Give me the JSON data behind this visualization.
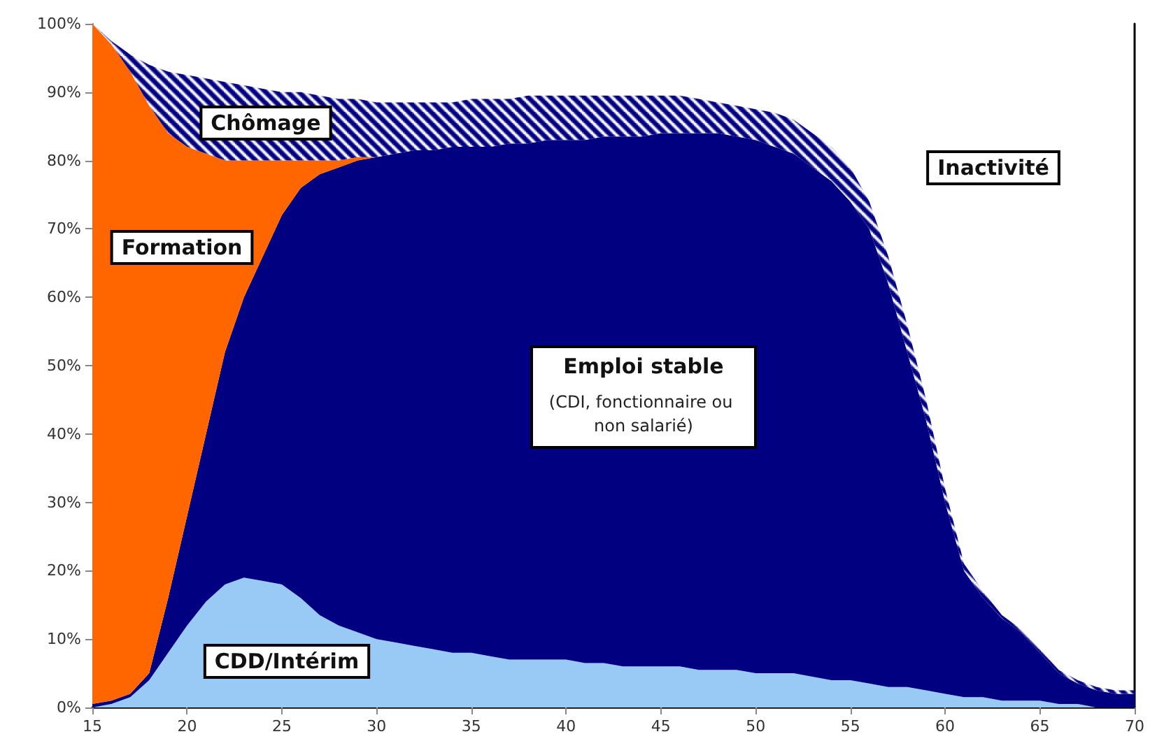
{
  "chart_data": {
    "type": "area",
    "stacked": true,
    "x": [
      15,
      16,
      17,
      18,
      19,
      20,
      21,
      22,
      23,
      24,
      25,
      26,
      27,
      28,
      29,
      30,
      31,
      32,
      33,
      34,
      35,
      36,
      37,
      38,
      39,
      40,
      41,
      42,
      43,
      44,
      45,
      46,
      47,
      48,
      49,
      50,
      51,
      52,
      53,
      54,
      55,
      56,
      57,
      58,
      59,
      60,
      61,
      62,
      63,
      64,
      65,
      66,
      67,
      68,
      69,
      70
    ],
    "series": [
      {
        "name": "CDD/Intérim",
        "color": "#99c9f5",
        "values": [
          0,
          0.5,
          1.5,
          4,
          8,
          12,
          15.5,
          18,
          19,
          18.5,
          18,
          16,
          13.5,
          12,
          11,
          10,
          9.5,
          9,
          8.5,
          8,
          8,
          7.5,
          7,
          7,
          7,
          7,
          6.5,
          6.5,
          6,
          6,
          6,
          6,
          5.5,
          5.5,
          5.5,
          5,
          5,
          5,
          4.5,
          4,
          4,
          3.5,
          3,
          3,
          2.5,
          2,
          1.5,
          1.5,
          1,
          1,
          1,
          0.5,
          0.5,
          0,
          0,
          0
        ]
      },
      {
        "name": "Emploi stable",
        "color": "#000080",
        "values": [
          0.5,
          0.5,
          0.5,
          1,
          8,
          16,
          24.5,
          34,
          41,
          47.5,
          54,
          60,
          64.5,
          67,
          69,
          70.5,
          71.5,
          72.5,
          73,
          74,
          74,
          74.5,
          75.5,
          75.5,
          76,
          76,
          76.5,
          77,
          77.5,
          77.5,
          78,
          78,
          78.5,
          78.5,
          78,
          78,
          77,
          76,
          74.5,
          73,
          70,
          66.5,
          59,
          49,
          39.5,
          28,
          18.5,
          14.5,
          12,
          10,
          7,
          4.5,
          3,
          2.5,
          2,
          2
        ]
      },
      {
        "name": "Formation",
        "color": "#ff6600",
        "values": [
          99.5,
          96,
          91,
          83,
          68,
          54,
          41,
          28,
          20,
          14,
          8,
          4,
          2,
          1,
          0.5,
          0,
          0,
          0,
          0,
          0,
          0,
          0,
          0,
          0,
          0,
          0,
          0,
          0,
          0,
          0,
          0,
          0,
          0,
          0,
          0,
          0,
          0,
          0,
          0,
          0,
          0,
          0,
          0,
          0,
          0,
          0,
          0,
          0,
          0,
          0,
          0,
          0,
          0,
          0,
          0,
          0
        ]
      },
      {
        "name": "Chômage",
        "color": "#000080",
        "values": [
          0,
          0.5,
          2.5,
          6,
          9,
          10.5,
          11,
          11.5,
          11,
          10.5,
          10,
          10,
          9.5,
          9,
          8.5,
          8,
          7.5,
          7,
          7,
          6.5,
          7,
          7,
          6.5,
          7,
          6.5,
          6.5,
          6.5,
          6,
          6,
          6,
          5.5,
          5.5,
          5,
          4.5,
          4.5,
          4.5,
          5,
          5,
          5,
          5,
          5,
          4,
          4,
          4,
          3,
          2,
          1,
          1,
          0.5,
          0.5,
          0.5,
          0.5,
          0.5,
          0.5,
          0.5,
          0.5
        ]
      }
    ],
    "annotations": [
      "(CDI, fonctionnaire ou non salarié)",
      "Inactivité"
    ],
    "xlim": [
      15,
      70
    ],
    "xticks": [
      15,
      20,
      25,
      30,
      35,
      40,
      45,
      50,
      55,
      60,
      65,
      70
    ],
    "ylim": [
      0,
      100
    ],
    "yticks": [
      {
        "value": 0,
        "label": "0%"
      },
      {
        "value": 10,
        "label": "10%"
      },
      {
        "value": 20,
        "label": "20%"
      },
      {
        "value": 30,
        "label": "30%"
      },
      {
        "value": 40,
        "label": "40%"
      },
      {
        "value": 50,
        "label": "50%"
      },
      {
        "value": 60,
        "label": "60%"
      },
      {
        "value": 70,
        "label": "70%"
      },
      {
        "value": 80,
        "label": "80%"
      },
      {
        "value": 90,
        "label": "90%"
      },
      {
        "value": 100,
        "label": "100%"
      }
    ],
    "grid": false
  }
}
